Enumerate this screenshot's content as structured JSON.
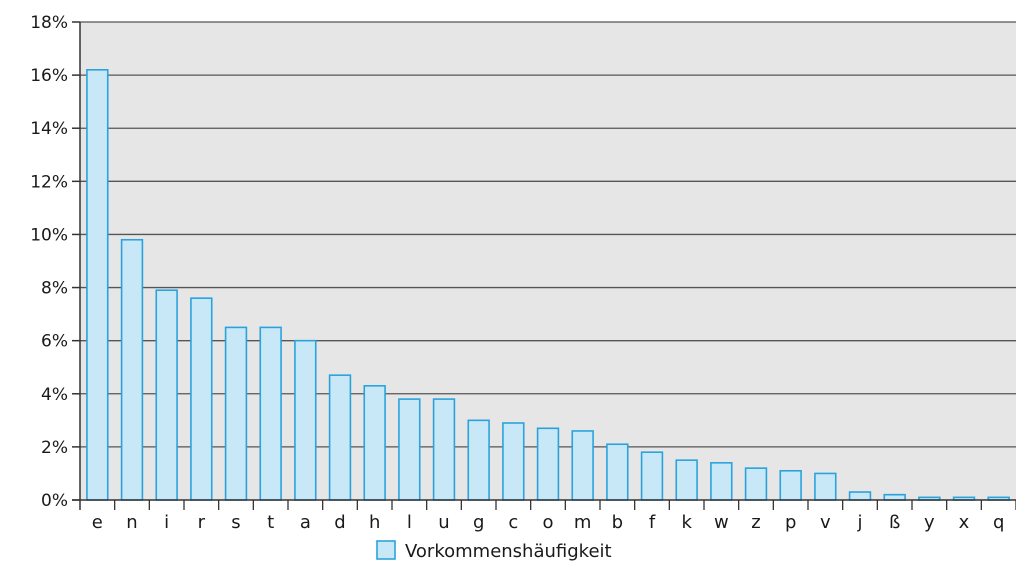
{
  "chart_data": {
    "type": "bar",
    "categories": [
      "e",
      "n",
      "i",
      "r",
      "s",
      "t",
      "a",
      "d",
      "h",
      "l",
      "u",
      "g",
      "c",
      "o",
      "m",
      "b",
      "f",
      "k",
      "w",
      "z",
      "p",
      "v",
      "j",
      "ß",
      "y",
      "x",
      "q"
    ],
    "series": [
      {
        "name": "Vorkommenshäufigkeit",
        "values": [
          16.2,
          9.8,
          7.9,
          7.6,
          6.5,
          6.5,
          6.0,
          4.7,
          4.3,
          3.8,
          3.8,
          3.0,
          2.9,
          2.7,
          2.6,
          2.1,
          1.8,
          1.5,
          1.4,
          1.2,
          1.1,
          1.0,
          0.3,
          0.2,
          0.1,
          0.1,
          0.1
        ]
      }
    ],
    "ylim": [
      0,
      18
    ],
    "yticks": [
      "0%",
      "2%",
      "4%",
      "6%",
      "8%",
      "10%",
      "12%",
      "14%",
      "16%",
      "18%"
    ],
    "grid": true,
    "legend": "bottom-center",
    "colors": {
      "plot_background": "#e6e6e6",
      "bar_fill": "#c8e8f8",
      "bar_stroke": "#2aa3dc",
      "grid": "#555555",
      "axis": "#333333"
    }
  }
}
